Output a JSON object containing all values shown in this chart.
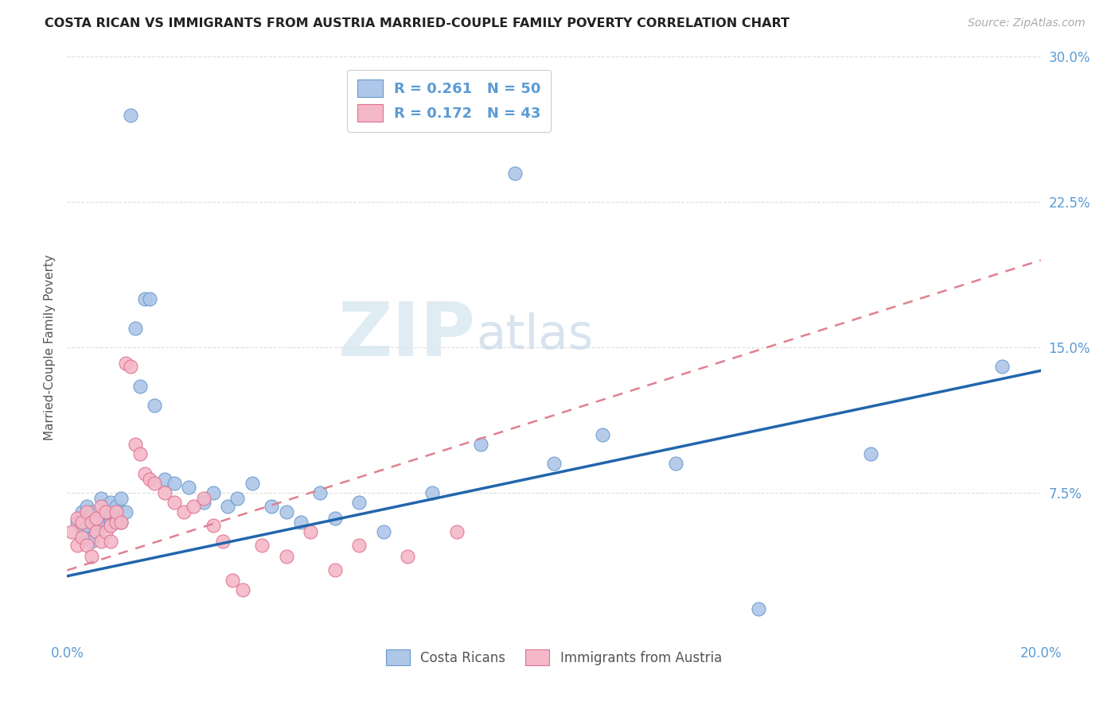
{
  "title": "COSTA RICAN VS IMMIGRANTS FROM AUSTRIA MARRIED-COUPLE FAMILY POVERTY CORRELATION CHART",
  "source": "Source: ZipAtlas.com",
  "ylabel": "Married-Couple Family Poverty",
  "xlabel": "",
  "xlim": [
    0.0,
    0.2
  ],
  "ylim": [
    0.0,
    0.3
  ],
  "xticks": [
    0.0,
    0.05,
    0.1,
    0.15,
    0.2
  ],
  "xticklabels": [
    "0.0%",
    "",
    "",
    "",
    "20.0%"
  ],
  "yticks": [
    0.0,
    0.075,
    0.15,
    0.225,
    0.3
  ],
  "yticklabels": [
    "",
    "7.5%",
    "15.0%",
    "22.5%",
    "30.0%"
  ],
  "legend_labels": [
    "Costa Ricans",
    "Immigrants from Austria"
  ],
  "blue_color": "#aec6e8",
  "pink_color": "#f4b8c8",
  "blue_edge_color": "#6699cc",
  "pink_edge_color": "#e07090",
  "blue_line_color": "#2166ac",
  "pink_line_color": "#e08090",
  "watermark_zip": "ZIP",
  "watermark_atlas": "atlas",
  "R_blue": 0.261,
  "N_blue": 50,
  "R_pink": 0.172,
  "N_pink": 43,
  "blue_scatter_x": [
    0.002,
    0.003,
    0.003,
    0.004,
    0.004,
    0.005,
    0.005,
    0.006,
    0.006,
    0.007,
    0.007,
    0.008,
    0.008,
    0.009,
    0.009,
    0.01,
    0.01,
    0.011,
    0.011,
    0.012,
    0.013,
    0.014,
    0.015,
    0.016,
    0.017,
    0.018,
    0.02,
    0.022,
    0.025,
    0.028,
    0.03,
    0.033,
    0.035,
    0.038,
    0.042,
    0.045,
    0.048,
    0.052,
    0.055,
    0.06,
    0.065,
    0.075,
    0.085,
    0.092,
    0.1,
    0.11,
    0.125,
    0.142,
    0.165,
    0.192
  ],
  "blue_scatter_y": [
    0.06,
    0.055,
    0.065,
    0.058,
    0.068,
    0.05,
    0.065,
    0.055,
    0.06,
    0.062,
    0.072,
    0.058,
    0.065,
    0.06,
    0.07,
    0.063,
    0.068,
    0.06,
    0.072,
    0.065,
    0.27,
    0.16,
    0.13,
    0.175,
    0.175,
    0.12,
    0.082,
    0.08,
    0.078,
    0.07,
    0.075,
    0.068,
    0.072,
    0.08,
    0.068,
    0.065,
    0.06,
    0.075,
    0.062,
    0.07,
    0.055,
    0.075,
    0.1,
    0.24,
    0.09,
    0.105,
    0.09,
    0.015,
    0.095,
    0.14
  ],
  "pink_scatter_x": [
    0.001,
    0.002,
    0.002,
    0.003,
    0.003,
    0.004,
    0.004,
    0.005,
    0.005,
    0.006,
    0.006,
    0.007,
    0.007,
    0.008,
    0.008,
    0.009,
    0.009,
    0.01,
    0.01,
    0.011,
    0.012,
    0.013,
    0.014,
    0.015,
    0.016,
    0.017,
    0.018,
    0.02,
    0.022,
    0.024,
    0.026,
    0.028,
    0.03,
    0.032,
    0.034,
    0.036,
    0.04,
    0.045,
    0.05,
    0.055,
    0.06,
    0.07,
    0.08
  ],
  "pink_scatter_y": [
    0.055,
    0.048,
    0.062,
    0.052,
    0.06,
    0.048,
    0.065,
    0.042,
    0.06,
    0.055,
    0.062,
    0.05,
    0.068,
    0.055,
    0.065,
    0.05,
    0.058,
    0.06,
    0.065,
    0.06,
    0.142,
    0.14,
    0.1,
    0.095,
    0.085,
    0.082,
    0.08,
    0.075,
    0.07,
    0.065,
    0.068,
    0.072,
    0.058,
    0.05,
    0.03,
    0.025,
    0.048,
    0.042,
    0.055,
    0.035,
    0.048,
    0.042,
    0.055
  ],
  "blue_line_x0": 0.0,
  "blue_line_y0": 0.032,
  "blue_line_x1": 0.2,
  "blue_line_y1": 0.138,
  "pink_line_x0": 0.0,
  "pink_line_y0": 0.035,
  "pink_line_x1": 0.2,
  "pink_line_y1": 0.195,
  "background_color": "#ffffff",
  "grid_color": "#dddddd"
}
